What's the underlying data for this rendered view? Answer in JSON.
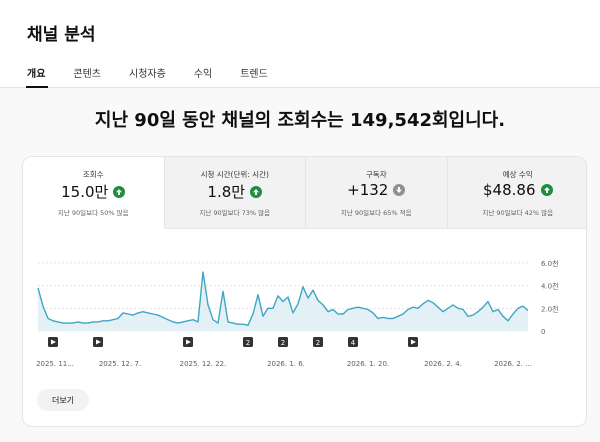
{
  "page": {
    "title": "채널 분석",
    "tabs": [
      {
        "label": "개요",
        "active": true
      },
      {
        "label": "콘텐츠",
        "active": false
      },
      {
        "label": "시청자층",
        "active": false
      },
      {
        "label": "수익",
        "active": false
      },
      {
        "label": "트렌드",
        "active": false
      }
    ],
    "headline": "지난 90일 동안 채널의 조회수는 149,542회입니다."
  },
  "metrics": [
    {
      "label": "조회수",
      "value": "15.0만",
      "trend": "up",
      "note": "지난 90일보다 50% 많음",
      "active": true
    },
    {
      "label": "시청 시간(단위: 시간)",
      "value": "1.8만",
      "trend": "up",
      "note": "지난 90일보다 73% 많음",
      "active": false
    },
    {
      "label": "구독자",
      "value": "+132",
      "trend": "down",
      "note": "지난 90일보다 65% 적음",
      "active": false
    },
    {
      "label": "예상 수익",
      "value": "$48.86",
      "trend": "up",
      "note": "지난 90일보다 42% 많음",
      "active": false
    }
  ],
  "colors": {
    "up": "#1e8e3e",
    "down": "#909090",
    "line": "#3ea6c4",
    "fill": "#e3f1f6"
  },
  "chart_data": {
    "type": "area",
    "series": [
      {
        "values": [
          3.8,
          2.2,
          1.1,
          0.9,
          0.8,
          0.7,
          0.7,
          0.7,
          0.8,
          0.7,
          0.7,
          0.8,
          0.8,
          0.9,
          0.9,
          1.0,
          1.1,
          1.6,
          1.5,
          1.4,
          1.6,
          1.7,
          1.6,
          1.5,
          1.4,
          1.2,
          1.0,
          0.8,
          0.7,
          0.8,
          0.9,
          1.0,
          0.8,
          5.2,
          2.3,
          1.0,
          0.7,
          3.5,
          0.8,
          0.7,
          0.6,
          0.6,
          0.5,
          1.5,
          3.2,
          1.3,
          2.0,
          2.0,
          3.1,
          2.6,
          3.0,
          1.6,
          2.4,
          3.9,
          2.9,
          3.6,
          2.7,
          2.3,
          1.7,
          1.9,
          1.5,
          1.5,
          1.9,
          2.0,
          2.1,
          2.0,
          1.9,
          1.6,
          1.1,
          1.2,
          1.1,
          1.1,
          1.3,
          1.5,
          1.9,
          2.1,
          2.0,
          2.4,
          2.7,
          2.5,
          2.1,
          1.7,
          2.0,
          2.3,
          2.0,
          1.9,
          1.3,
          1.4,
          1.7,
          2.1,
          2.6,
          1.7,
          1.9,
          1.3,
          0.9,
          1.5,
          2.0,
          2.2,
          1.8
        ]
      }
    ],
    "x_labels": [
      "2025. 11...",
      "2025. 12. 7.",
      "2025. 12. 22.",
      "2026. 1. 6.",
      "2026. 1. 20.",
      "2026. 2. 4.",
      "2026. 2. ..."
    ],
    "y_ticks": [
      "6.0천",
      "4.0천",
      "2.0천",
      "0"
    ],
    "ylim": [
      0,
      6
    ],
    "grid": true,
    "markers": [
      {
        "x_index": 3,
        "type": "play",
        "label": ""
      },
      {
        "x_index": 12,
        "type": "play",
        "label": ""
      },
      {
        "x_index": 30,
        "type": "play",
        "label": ""
      },
      {
        "x_index": 42,
        "type": "count",
        "label": "2"
      },
      {
        "x_index": 49,
        "type": "count",
        "label": "2"
      },
      {
        "x_index": 56,
        "type": "count",
        "label": "2"
      },
      {
        "x_index": 63,
        "type": "count",
        "label": "4"
      },
      {
        "x_index": 75,
        "type": "play",
        "label": ""
      }
    ]
  },
  "more_button": "더보기"
}
